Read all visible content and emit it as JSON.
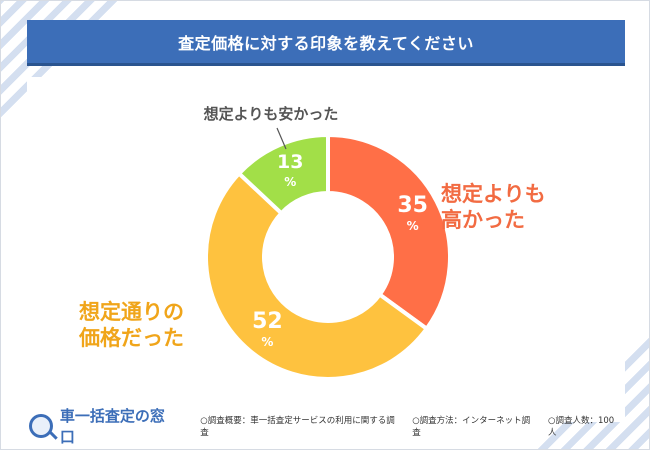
{
  "title": "査定価格に対する印象を教えてください",
  "colors": {
    "title_bar": "#3c6eb8",
    "higher": "#ff6f47",
    "same": "#fec23f",
    "cheaper": "#a2df48"
  },
  "chart_data": {
    "type": "pie",
    "donut": true,
    "title": "査定価格に対する印象を教えてください",
    "slices": [
      {
        "label": "想定よりも高かった",
        "value": 35,
        "color": "#ff6f47"
      },
      {
        "label": "想定通りの価格だった",
        "value": 52,
        "color": "#fec23f"
      },
      {
        "label": "想定よりも安かった",
        "value": 13,
        "color": "#a2df48"
      }
    ],
    "unit": "%"
  },
  "labels": {
    "higher_line1": "想定よりも",
    "higher_line2": "高かった",
    "same_line1": "想定通りの",
    "same_line2": "価格だった",
    "cheaper": "想定よりも安かった"
  },
  "footer": {
    "logo": "車一括査定の窓口",
    "logo_icon": "magnifier-car-icon",
    "note_survey": "○調査概要：車一括査定サービスの利用に関する調査",
    "note_method": "○調査方法：インターネット調査",
    "note_people": "○調査人数：100 人"
  }
}
